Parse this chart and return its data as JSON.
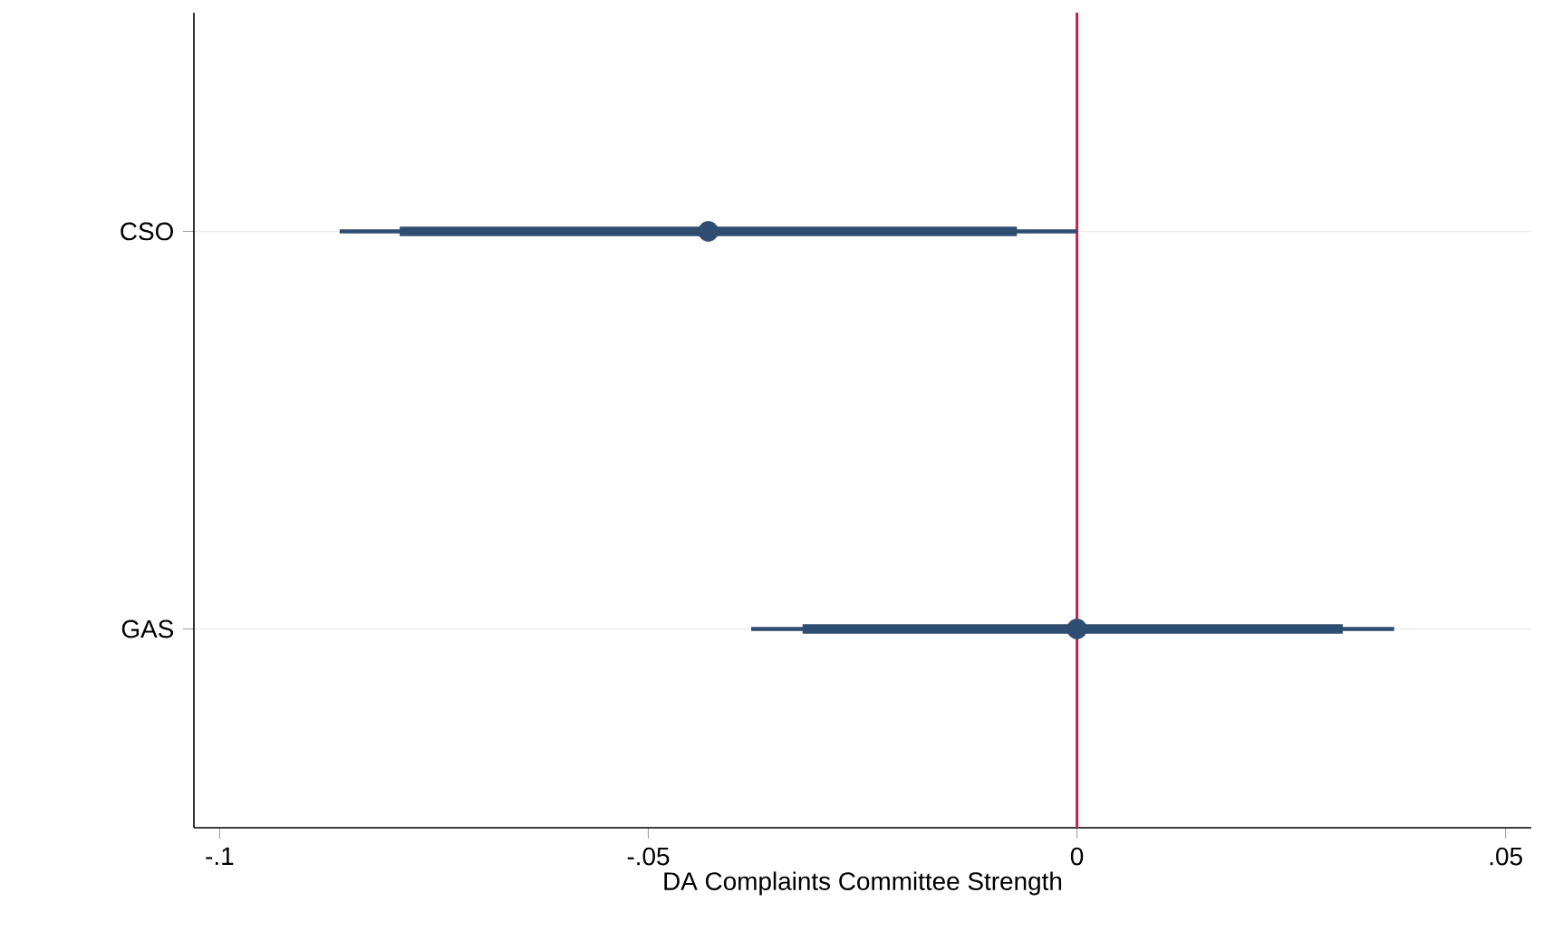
{
  "chart_data": {
    "type": "bar",
    "orientation": "horizontal",
    "categories": [
      "CSO",
      "GAS"
    ],
    "series": [
      {
        "color": "#2e4d70",
        "base": [
          -0.086,
          -0.038
        ],
        "values": [
          0.086,
          0.075
        ]
      },
      {
        "color": "#2e4d70",
        "base": [
          -0.079,
          -0.032
        ],
        "values": [
          0.072,
          0.063
        ]
      },
      {
        "type": "scatter",
        "color": "#2e4d70",
        "values": [
          -0.043,
          0
        ]
      }
    ],
    "xlim": [
      -0.103,
      0.053
    ],
    "xticks": [
      {
        "value": -0.1,
        "label": "-.1"
      },
      {
        "value": -0.05,
        "label": "-.05"
      },
      0,
      {
        "value": 0.05,
        "label": ".05"
      }
    ],
    "xlabel": "DA Complaints Committee Strength",
    "ref_lines": [
      {
        "axis": "x",
        "value": 0,
        "color": "#cc1f4a"
      }
    ],
    "grid": "y"
  }
}
